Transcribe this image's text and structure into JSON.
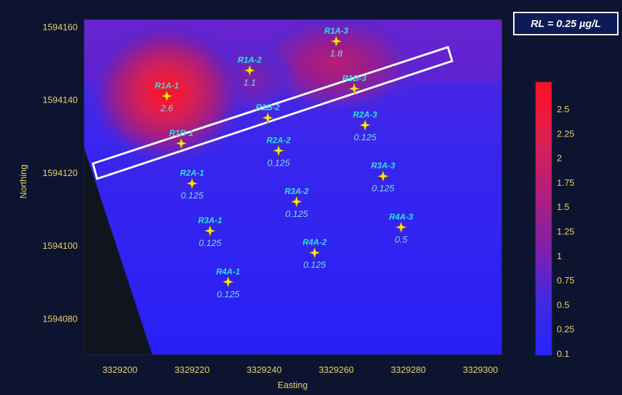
{
  "chart_data": {
    "type": "heatmap",
    "title": "",
    "xlabel": "Easting",
    "ylabel": "Northing",
    "xlim": [
      3329190,
      3329306
    ],
    "ylim": [
      1594070,
      1594162
    ],
    "xticks": [
      3329200,
      3329220,
      3329240,
      3329260,
      3329280,
      3329300
    ],
    "yticks": [
      1594080,
      1594100,
      1594120,
      1594140,
      1594160
    ],
    "colorbar": {
      "labels": [
        "2.5",
        "2.25",
        "2",
        "1.75",
        "1.5",
        "1.25",
        "1",
        "0.75",
        "0.5",
        "0.25",
        "0.1"
      ],
      "colors": [
        "#ff1020",
        "#f01a3a",
        "#de2050",
        "#c82064",
        "#b41e78",
        "#9a1c8e",
        "#8020a8",
        "#6a24c0",
        "#5228d8",
        "#3a28ea",
        "#2424ff"
      ]
    },
    "wells": [
      {
        "name": "R1A-1",
        "x": 3329213,
        "y": 1594141,
        "value": "2.6"
      },
      {
        "name": "R1A-2",
        "x": 3329236,
        "y": 1594148,
        "value": "1.1"
      },
      {
        "name": "R1A-3",
        "x": 3329260,
        "y": 1594156,
        "value": "1.8"
      },
      {
        "name": "R1B-1",
        "x": 3329217,
        "y": 1594128,
        "value": ""
      },
      {
        "name": "R1B-2",
        "x": 3329241,
        "y": 1594135,
        "value": ""
      },
      {
        "name": "R1B-3",
        "x": 3329265,
        "y": 1594143,
        "value": ""
      },
      {
        "name": "R2A-1",
        "x": 3329220,
        "y": 1594117,
        "value": "0.125"
      },
      {
        "name": "R2A-2",
        "x": 3329244,
        "y": 1594126,
        "value": "0.125"
      },
      {
        "name": "R2A-3",
        "x": 3329268,
        "y": 1594133,
        "value": "0.125"
      },
      {
        "name": "R3A-1",
        "x": 3329225,
        "y": 1594104,
        "value": "0.125"
      },
      {
        "name": "R3A-2",
        "x": 3329249,
        "y": 1594112,
        "value": "0.125"
      },
      {
        "name": "R3A-3",
        "x": 3329273,
        "y": 1594119,
        "value": "0.125"
      },
      {
        "name": "R4A-1",
        "x": 3329230,
        "y": 1594090,
        "value": "0.125"
      },
      {
        "name": "R4A-2",
        "x": 3329254,
        "y": 1594098,
        "value": "0.125"
      },
      {
        "name": "R4A-3",
        "x": 3329278,
        "y": 1594105,
        "value": "0.5"
      }
    ],
    "legend_placement": "right",
    "grid": false
  },
  "annotation": {
    "rl_label": "RL = 0.25 µg/L"
  },
  "colors": {
    "background": "#0c1430",
    "field_low": "#2a1cf0",
    "field_high": "#ff1a2a",
    "no_data": "#10141e",
    "tick_text": "#e8d36a",
    "well_name": "#2fe0f0",
    "well_value": "#7fd8f0",
    "well_marker": "#ffe020"
  }
}
